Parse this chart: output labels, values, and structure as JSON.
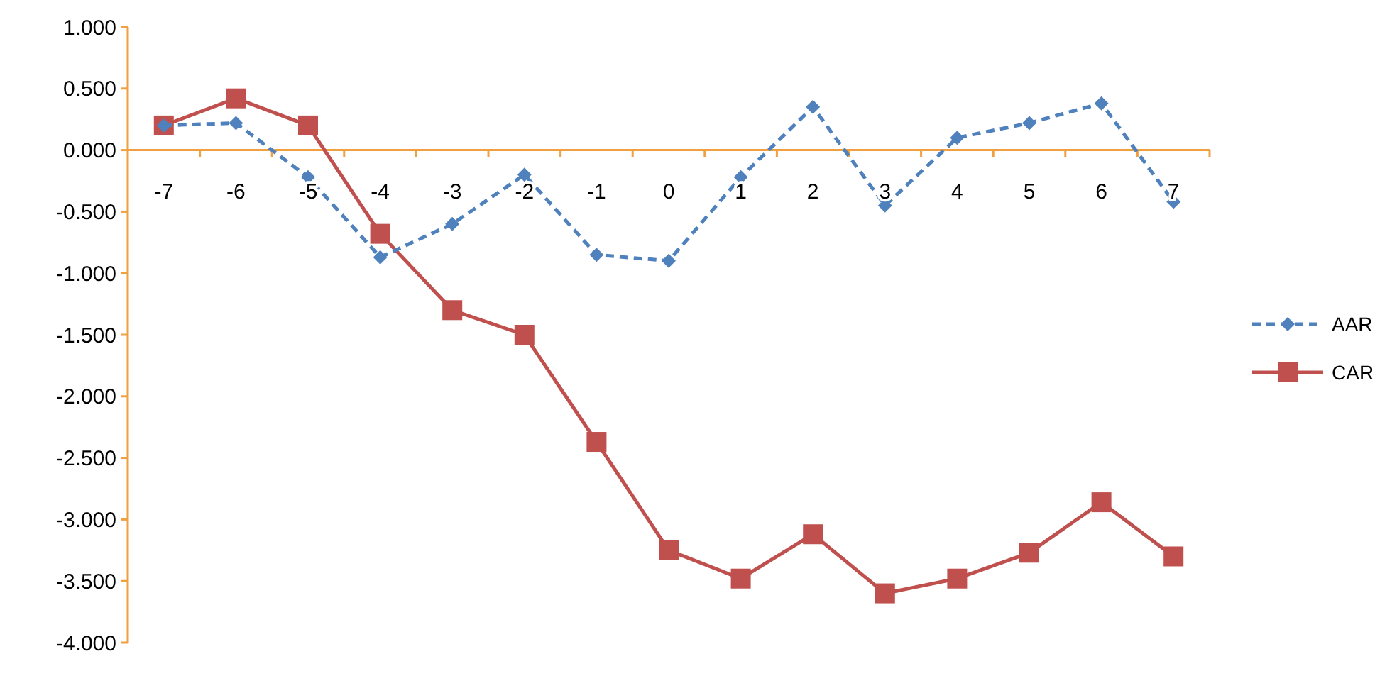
{
  "chart_data": {
    "type": "line",
    "categories": [
      "-7",
      "-6",
      "-5",
      "-4",
      "-3",
      "-2",
      "-1",
      "0",
      "1",
      "2",
      "3",
      "4",
      "5",
      "6",
      "7"
    ],
    "series": [
      {
        "name": "AAR",
        "color": "#4f81bd",
        "marker": "diamond",
        "line_style": "dashed",
        "values": [
          0.2,
          0.22,
          -0.22,
          -0.87,
          -0.6,
          -0.2,
          -0.85,
          -0.9,
          -0.22,
          0.35,
          -0.45,
          0.1,
          0.22,
          0.38,
          -0.42
        ]
      },
      {
        "name": "CAR",
        "color": "#c0504d",
        "marker": "square",
        "line_style": "solid",
        "values": [
          0.2,
          0.42,
          0.2,
          -0.68,
          -1.3,
          -1.5,
          -2.37,
          -3.25,
          -3.48,
          -3.12,
          -3.6,
          -3.48,
          -3.27,
          -2.86,
          -3.3
        ]
      }
    ],
    "ylim": [
      -4,
      1
    ],
    "yticks": [
      {
        "value": 1,
        "label": "1.000"
      },
      {
        "value": 0.5,
        "label": "0.500"
      },
      {
        "value": 0,
        "label": "0.000"
      },
      {
        "value": -0.5,
        "label": "-0.500"
      },
      {
        "value": -1,
        "label": "-1.000"
      },
      {
        "value": -1.5,
        "label": "-1.500"
      },
      {
        "value": -2,
        "label": "-2.000"
      },
      {
        "value": -2.5,
        "label": "-2.500"
      },
      {
        "value": -3,
        "label": "-3.000"
      },
      {
        "value": -3.5,
        "label": "-3.500"
      },
      {
        "value": -4,
        "label": "-4.000"
      }
    ],
    "legend": "right",
    "grid": false
  }
}
